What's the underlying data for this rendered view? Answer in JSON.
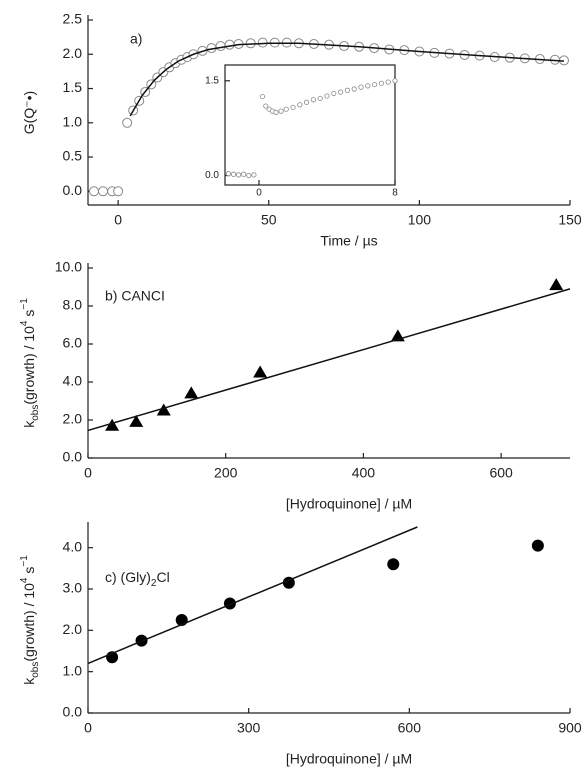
{
  "chart_data": [
    {
      "type": "scatter",
      "label": "a)",
      "x_label": "Time / µs",
      "y_label": [
        "G(Q⁻•)"
      ],
      "xlim": [
        -10,
        150
      ],
      "ylim": [
        -0.2,
        2.5
      ],
      "xticks": [
        0,
        50,
        100,
        150
      ],
      "yticks": [
        {
          "value": 0,
          "label": "0.0"
        },
        {
          "value": 0.5,
          "label": "0.5"
        },
        {
          "value": 1,
          "label": "1.0"
        },
        {
          "value": 1.5,
          "label": "1.5"
        },
        {
          "value": 2,
          "label": "2.0"
        },
        {
          "value": 2.5,
          "label": "2.5"
        }
      ],
      "series": [
        {
          "marker": "open-circle",
          "color": "#888888",
          "x": [
            -8,
            -5,
            -2,
            0,
            3,
            5,
            7,
            9,
            11,
            13,
            15,
            17,
            19,
            21,
            23,
            25,
            28,
            31,
            34,
            37,
            40,
            44,
            48,
            52,
            56,
            60,
            65,
            70,
            75,
            80,
            85,
            90,
            95,
            100,
            105,
            110,
            115,
            120,
            125,
            130,
            135,
            140,
            145,
            148
          ],
          "values": [
            0,
            0,
            0,
            0,
            1.0,
            1.18,
            1.32,
            1.45,
            1.56,
            1.66,
            1.74,
            1.81,
            1.87,
            1.92,
            1.96,
            2.0,
            2.05,
            2.09,
            2.12,
            2.14,
            2.15,
            2.16,
            2.17,
            2.17,
            2.17,
            2.16,
            2.15,
            2.14,
            2.12,
            2.11,
            2.09,
            2.07,
            2.06,
            2.04,
            2.02,
            2.01,
            1.99,
            1.98,
            1.96,
            1.95,
            1.94,
            1.93,
            1.92,
            1.91
          ]
        },
        {
          "marker": "line",
          "color": "#111111",
          "x": [
            4,
            8,
            12,
            16,
            20,
            25,
            30,
            40,
            50,
            60,
            80,
            100,
            120,
            148
          ],
          "values": [
            1.1,
            1.4,
            1.62,
            1.78,
            1.9,
            2.0,
            2.07,
            2.14,
            2.16,
            2.16,
            2.11,
            2.04,
            1.98,
            1.9
          ]
        }
      ]
    },
    {
      "type": "scatter",
      "xlim": [
        -2,
        8
      ],
      "ylim": [
        -0.15,
        1.75
      ],
      "xticks": [
        0,
        8
      ],
      "yticks": [
        {
          "value": 0,
          "label": "0.0"
        },
        {
          "value": 1.5,
          "label": "1.5"
        }
      ],
      "series": [
        {
          "marker": "small-circle",
          "color": "#888888",
          "x": [
            -1.8,
            -1.5,
            -1.2,
            -0.9,
            -0.6,
            -0.3,
            0.2,
            0.4,
            0.6,
            0.8,
            1.0,
            1.3,
            1.6,
            2,
            2.4,
            2.8,
            3.2,
            3.6,
            4,
            4.4,
            4.8,
            5.2,
            5.6,
            6,
            6.4,
            6.8,
            7.2,
            7.6,
            8
          ],
          "values": [
            0.03,
            0.02,
            0.01,
            0.02,
            0.0,
            0.01,
            1.25,
            1.1,
            1.05,
            1.02,
            1.0,
            1.02,
            1.05,
            1.08,
            1.12,
            1.16,
            1.2,
            1.22,
            1.26,
            1.3,
            1.32,
            1.35,
            1.37,
            1.4,
            1.42,
            1.44,
            1.46,
            1.48,
            1.5
          ]
        }
      ]
    },
    {
      "type": "scatter",
      "label": "b) CANCI",
      "x_label": "[Hydroquinone] / µM",
      "y_label": [
        "k",
        "obs",
        "(growth) / 10",
        "4",
        " s",
        "−1"
      ],
      "xlim": [
        0,
        700
      ],
      "ylim": [
        0,
        10
      ],
      "xticks": [
        0,
        200,
        400,
        600
      ],
      "yticks": [
        {
          "value": 0,
          "label": "0.0"
        },
        {
          "value": 2,
          "label": "2.0"
        },
        {
          "value": 4,
          "label": "4.0"
        },
        {
          "value": 6,
          "label": "6.0"
        },
        {
          "value": 8,
          "label": "8.0"
        },
        {
          "value": 10,
          "label": "10.0"
        }
      ],
      "series": [
        {
          "marker": "triangle",
          "color": "#000000",
          "x": [
            35,
            70,
            110,
            150,
            250,
            450,
            680
          ],
          "values": [
            1.7,
            1.9,
            2.5,
            3.4,
            4.5,
            6.4,
            9.1
          ]
        },
        {
          "marker": "line",
          "color": "#111111",
          "x": [
            0,
            700
          ],
          "values": [
            1.45,
            8.9
          ]
        }
      ]
    },
    {
      "type": "scatter",
      "label": [
        "c) (Gly)",
        "2",
        "Cl"
      ],
      "x_label": "[Hydroquinone] / µM",
      "y_label": [
        "k",
        "obs",
        "(growth) / 10",
        "4",
        " s",
        "−1"
      ],
      "xlim": [
        0,
        900
      ],
      "ylim": [
        0,
        4.5
      ],
      "xticks": [
        0,
        300,
        600,
        900
      ],
      "yticks": [
        {
          "value": 0,
          "label": "0.0"
        },
        {
          "value": 1,
          "label": "1.0"
        },
        {
          "value": 2,
          "label": "2.0"
        },
        {
          "value": 3,
          "label": "3.0"
        },
        {
          "value": 4,
          "label": "4.0"
        }
      ],
      "series": [
        {
          "marker": "circle",
          "color": "#000000",
          "x": [
            45,
            100,
            175,
            265,
            375,
            570,
            840
          ],
          "values": [
            1.35,
            1.75,
            2.25,
            2.65,
            3.15,
            3.6,
            4.05
          ]
        },
        {
          "marker": "line",
          "color": "#111111",
          "x": [
            0,
            615
          ],
          "values": [
            1.2,
            4.5
          ]
        }
      ]
    }
  ]
}
